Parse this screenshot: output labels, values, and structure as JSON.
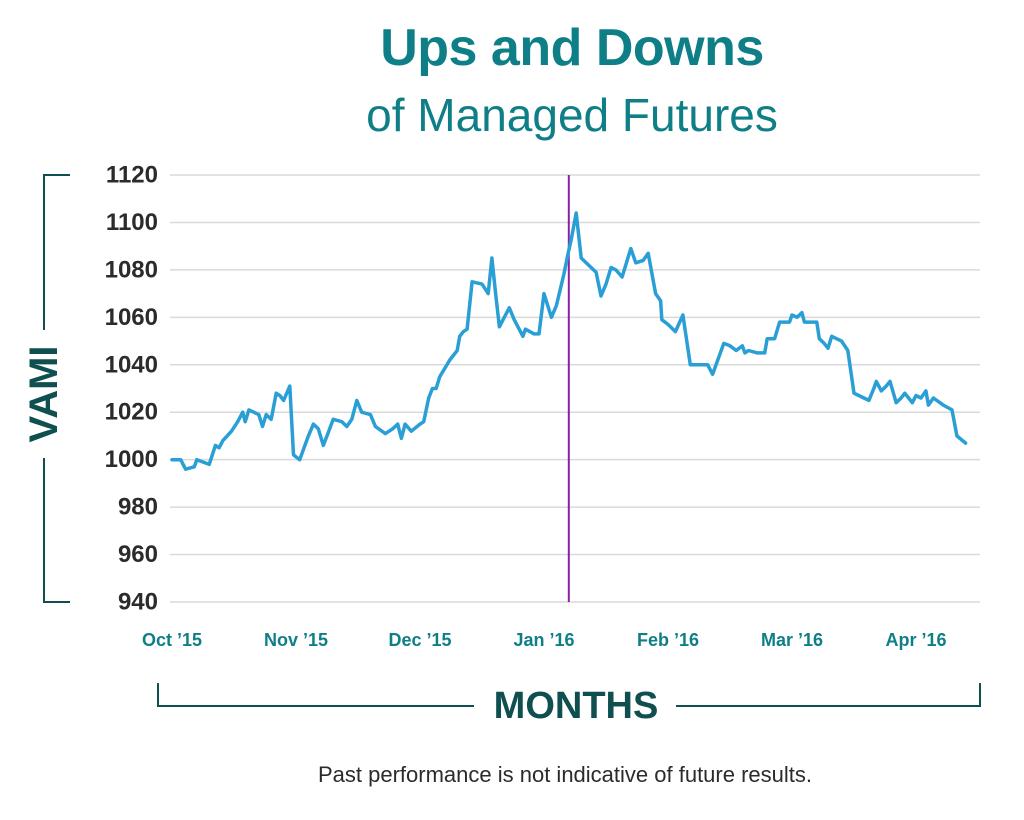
{
  "title": "Ups and Downs",
  "subtitle": "of Managed Futures",
  "footnote": "Past performance is not indicative of future results.",
  "colors": {
    "title": "#0f7f87",
    "axis_label": "#0f4f4f",
    "line": "#2a9fd6",
    "marker": "#8a1fa8",
    "grid": "#d9d9d9",
    "tick_x": "#0f7f87",
    "tick_y": "#2b2b2b"
  },
  "chart_data": {
    "type": "line",
    "xlabel": "MONTHS",
    "ylabel": "VAMI",
    "ylim": [
      940,
      1120
    ],
    "yticks": [
      940,
      960,
      980,
      1000,
      1020,
      1040,
      1060,
      1080,
      1100,
      1120
    ],
    "month_labels": [
      "Oct ’15",
      "Nov ’15",
      "Dec ’15",
      "Jan ’16",
      "Feb ’16",
      "Mar ’16",
      "Apr ’16"
    ],
    "grid": "horizontal",
    "legend": "none",
    "annotation": {
      "type": "vertical-line",
      "x": 3.2,
      "label": ""
    },
    "x_unit": "months after Oct ’15",
    "series": [
      {
        "values": [
          [
            0.0,
            1000
          ],
          [
            0.07,
            1000
          ],
          [
            0.11,
            996
          ],
          [
            0.18,
            997
          ],
          [
            0.2,
            1000
          ],
          [
            0.3,
            998
          ],
          [
            0.35,
            1006
          ],
          [
            0.38,
            1005
          ],
          [
            0.41,
            1008
          ],
          [
            0.48,
            1012
          ],
          [
            0.53,
            1016
          ],
          [
            0.57,
            1020
          ],
          [
            0.59,
            1016
          ],
          [
            0.62,
            1021
          ],
          [
            0.66,
            1020
          ],
          [
            0.7,
            1019
          ],
          [
            0.73,
            1014
          ],
          [
            0.76,
            1019
          ],
          [
            0.8,
            1017
          ],
          [
            0.84,
            1028
          ],
          [
            0.87,
            1027
          ],
          [
            0.9,
            1025
          ],
          [
            0.95,
            1031
          ],
          [
            0.98,
            1002
          ],
          [
            1.03,
            1000
          ],
          [
            1.1,
            1010
          ],
          [
            1.14,
            1015
          ],
          [
            1.18,
            1013
          ],
          [
            1.22,
            1006
          ],
          [
            1.25,
            1010
          ],
          [
            1.3,
            1017
          ],
          [
            1.37,
            1016
          ],
          [
            1.41,
            1014
          ],
          [
            1.45,
            1017
          ],
          [
            1.49,
            1025
          ],
          [
            1.53,
            1020
          ],
          [
            1.6,
            1019
          ],
          [
            1.64,
            1014
          ],
          [
            1.72,
            1011
          ],
          [
            1.78,
            1013
          ],
          [
            1.82,
            1015
          ],
          [
            1.85,
            1009
          ],
          [
            1.88,
            1015
          ],
          [
            1.93,
            1012
          ],
          [
            2.0,
            1015
          ],
          [
            2.03,
            1016
          ],
          [
            2.07,
            1026
          ],
          [
            2.1,
            1030
          ],
          [
            2.13,
            1030
          ],
          [
            2.16,
            1035
          ],
          [
            2.24,
            1042
          ],
          [
            2.3,
            1046
          ],
          [
            2.32,
            1052
          ],
          [
            2.35,
            1054
          ],
          [
            2.38,
            1055
          ],
          [
            2.42,
            1075
          ],
          [
            2.5,
            1074
          ],
          [
            2.55,
            1070
          ],
          [
            2.58,
            1085
          ],
          [
            2.61,
            1070
          ],
          [
            2.64,
            1056
          ],
          [
            2.68,
            1060
          ],
          [
            2.72,
            1064
          ],
          [
            2.76,
            1059
          ],
          [
            2.83,
            1052
          ],
          [
            2.85,
            1055
          ],
          [
            2.92,
            1053
          ],
          [
            2.96,
            1053
          ],
          [
            3.0,
            1070
          ],
          [
            3.06,
            1060
          ],
          [
            3.1,
            1065
          ],
          [
            3.16,
            1078
          ],
          [
            3.19,
            1086
          ],
          [
            3.22,
            1093
          ],
          [
            3.26,
            1104
          ],
          [
            3.3,
            1085
          ],
          [
            3.38,
            1081
          ],
          [
            3.42,
            1079
          ],
          [
            3.46,
            1069
          ],
          [
            3.5,
            1074
          ],
          [
            3.54,
            1081
          ],
          [
            3.58,
            1080
          ],
          [
            3.63,
            1077
          ],
          [
            3.7,
            1089
          ],
          [
            3.74,
            1083
          ],
          [
            3.8,
            1084
          ],
          [
            3.84,
            1087
          ],
          [
            3.9,
            1070
          ],
          [
            3.94,
            1067
          ],
          [
            3.95,
            1059
          ],
          [
            4.0,
            1057
          ],
          [
            4.06,
            1054
          ],
          [
            4.12,
            1061
          ],
          [
            4.18,
            1040
          ],
          [
            4.26,
            1040
          ],
          [
            4.32,
            1040
          ],
          [
            4.36,
            1036
          ],
          [
            4.45,
            1049
          ],
          [
            4.5,
            1048
          ],
          [
            4.55,
            1046
          ],
          [
            4.6,
            1048
          ],
          [
            4.62,
            1045
          ],
          [
            4.65,
            1046
          ],
          [
            4.72,
            1045
          ],
          [
            4.78,
            1045
          ],
          [
            4.8,
            1051
          ],
          [
            4.86,
            1051
          ],
          [
            4.9,
            1058
          ],
          [
            4.98,
            1058
          ],
          [
            5.0,
            1061
          ],
          [
            5.04,
            1060
          ],
          [
            5.08,
            1062
          ],
          [
            5.1,
            1058
          ],
          [
            5.14,
            1058
          ],
          [
            5.2,
            1058
          ],
          [
            5.22,
            1051
          ],
          [
            5.26,
            1049
          ],
          [
            5.29,
            1047
          ],
          [
            5.32,
            1052
          ],
          [
            5.36,
            1051
          ],
          [
            5.4,
            1050
          ],
          [
            5.45,
            1046
          ],
          [
            5.5,
            1028
          ],
          [
            5.58,
            1026
          ],
          [
            5.62,
            1025
          ],
          [
            5.66,
            1030
          ],
          [
            5.68,
            1033
          ],
          [
            5.72,
            1029
          ],
          [
            5.76,
            1031
          ],
          [
            5.79,
            1033
          ],
          [
            5.84,
            1024
          ],
          [
            5.88,
            1026
          ],
          [
            5.91,
            1028
          ],
          [
            5.97,
            1024
          ],
          [
            6.0,
            1027
          ],
          [
            6.04,
            1026
          ],
          [
            6.08,
            1029
          ],
          [
            6.1,
            1023
          ],
          [
            6.14,
            1026
          ],
          [
            6.22,
            1023
          ],
          [
            6.29,
            1021
          ],
          [
            6.33,
            1010
          ],
          [
            6.4,
            1007
          ]
        ]
      }
    ]
  }
}
